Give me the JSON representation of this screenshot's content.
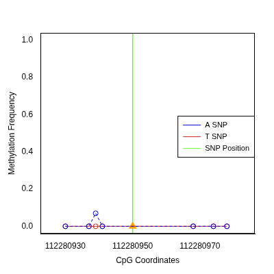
{
  "chart_data": {
    "type": "line",
    "x_label": "CpG Coordinates",
    "y_label": "Methylation Frequency",
    "xlim": [
      112280922.6,
      112280986.3
    ],
    "xticks": [
      112280930,
      112280950,
      112280970
    ],
    "ylim": [
      -0.04,
      1.04
    ],
    "yticks": [
      {
        "value": 0,
        "label": "0.0"
      },
      0.2,
      0.4,
      0.6,
      0.8,
      {
        "value": 1,
        "label": "1.0"
      }
    ],
    "grid": false,
    "legend": "right",
    "series": [
      {
        "name": "A SNP",
        "color": "#0000cd",
        "marker": "circle",
        "line_style": "dashed",
        "x": [
          112280930,
          112280937,
          112280939,
          112280941,
          112280968,
          112280974,
          112280978
        ],
        "values": [
          0,
          0,
          0.07,
          0,
          0,
          0,
          0
        ]
      },
      {
        "name": "T SNP",
        "color": "#cd2626",
        "marker": "circle",
        "line_style": "solid",
        "x": [
          112280930,
          112280937,
          112280939,
          112280941,
          112280968,
          112280974,
          112280978
        ],
        "values": [
          0,
          0,
          0,
          0,
          0,
          0,
          0
        ]
      },
      {
        "name": "SNP Position",
        "type": "vline",
        "color": "#66ff33",
        "marker": "triangle",
        "colors": [
          "#ffa500"
        ],
        "x": [
          112280950
        ],
        "values": [
          0
        ]
      }
    ]
  }
}
